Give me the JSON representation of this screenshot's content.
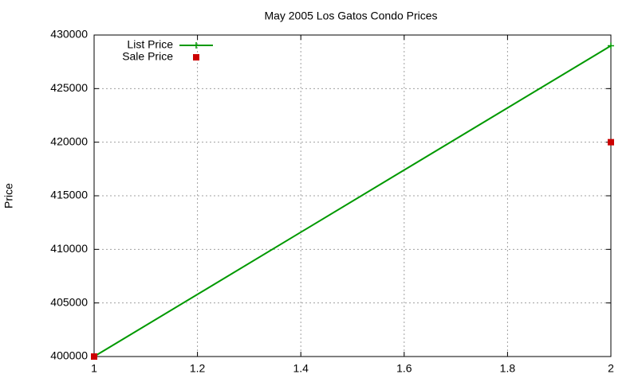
{
  "chart_data": {
    "type": "line",
    "title": "May 2005 Los Gatos Condo Prices",
    "y_label": "Price",
    "x": [
      1,
      2
    ],
    "series": [
      {
        "name": "List Price",
        "color": "#009900",
        "style": "linespoints",
        "values": [
          400000,
          429000
        ]
      },
      {
        "name": "Sale Price",
        "color": "#cc0000",
        "style": "points",
        "values": [
          400000,
          420000
        ]
      }
    ],
    "xlim": [
      1,
      2
    ],
    "xticks": [
      1,
      1.2,
      1.4,
      1.6,
      1.8,
      2
    ],
    "ylim": [
      400000,
      430000
    ],
    "yticks": [
      400000,
      405000,
      410000,
      415000,
      420000,
      425000,
      430000
    ],
    "grid": true,
    "legend": "top-left"
  }
}
